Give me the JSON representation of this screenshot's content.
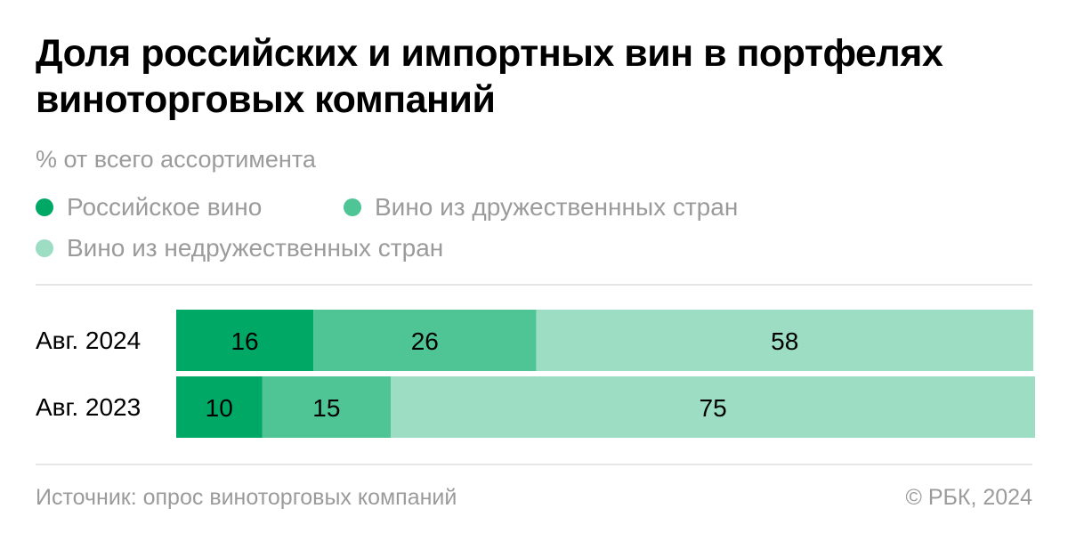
{
  "chart_data": {
    "type": "bar",
    "orientation": "horizontal",
    "stacked": true,
    "title": "Доля российских и импортных вин в портфелях виноторговых компаний",
    "subtitle": "% от всего ассортимента",
    "categories": [
      "Авг. 2024",
      "Авг. 2023"
    ],
    "series": [
      {
        "name": "Российское вино",
        "color": "#00a866",
        "values": [
          16,
          10
        ]
      },
      {
        "name": "Вино из дружественнных стран",
        "color": "#4fc596",
        "values": [
          26,
          15
        ]
      },
      {
        "name": "Вино из недружественных стран",
        "color": "#9cddc3",
        "values": [
          58,
          75
        ]
      }
    ],
    "xlim": [
      0,
      100
    ],
    "legend_position": "top",
    "grid": false
  },
  "footer": {
    "source": "Источник: опрос виноторговых компаний",
    "copyright": "© РБК, 2024"
  }
}
